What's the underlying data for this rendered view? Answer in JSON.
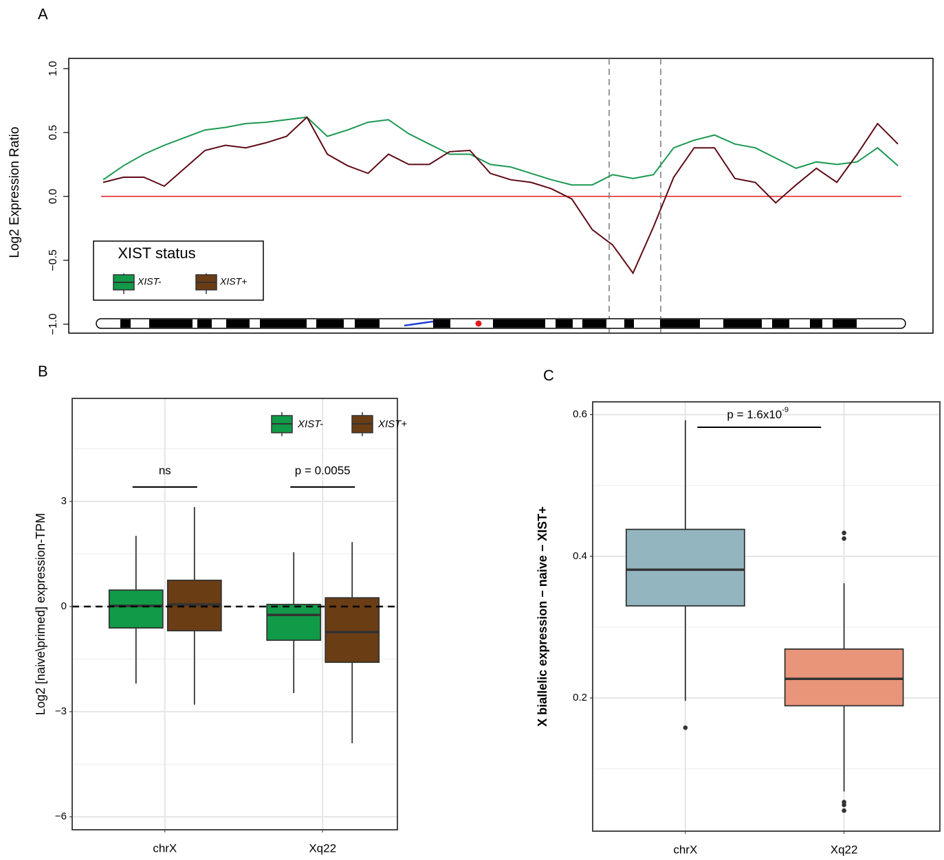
{
  "chart_data": [
    {
      "type": "line",
      "panel": "A",
      "y_label": "Log2 Expression Ratio",
      "ylim": [
        -1.07,
        1.08
      ],
      "yticks": [
        {
          "value": -1,
          "label": "−1.0"
        },
        {
          "value": -0.5,
          "label": "−0.5"
        },
        {
          "value": 0,
          "label": "0.0"
        },
        0.5,
        {
          "value": 1,
          "label": "1.0"
        }
      ],
      "hline": 0,
      "hline_color": "#e31a1c",
      "legend_title": "XIST status",
      "series": [
        {
          "name": "XIST-",
          "color": "#1a9850",
          "legend_color": "#119a48",
          "values": [
            0.13,
            0.24,
            0.33,
            0.4,
            0.46,
            0.52,
            0.54,
            0.57,
            0.58,
            0.6,
            0.62,
            0.47,
            0.52,
            0.58,
            0.6,
            0.49,
            0.41,
            0.33,
            0.33,
            0.25,
            0.23,
            0.18,
            0.13,
            0.09,
            0.09,
            0.17,
            0.14,
            0.17,
            0.38,
            0.44,
            0.48,
            0.41,
            0.38,
            0.3,
            0.22,
            0.27,
            0.25,
            0.27,
            0.38,
            0.24
          ]
        },
        {
          "name": "XIST+",
          "color": "#5e0a14",
          "legend_color": "#6b3d14",
          "values": [
            0.11,
            0.15,
            0.15,
            0.08,
            0.22,
            0.36,
            0.4,
            0.38,
            0.42,
            0.47,
            0.62,
            0.33,
            0.24,
            0.18,
            0.33,
            0.25,
            0.25,
            0.35,
            0.36,
            0.18,
            0.13,
            0.11,
            0.06,
            -0.02,
            -0.26,
            -0.38,
            -0.6,
            -0.24,
            0.15,
            0.38,
            0.38,
            0.14,
            0.11,
            -0.05,
            0.09,
            0.22,
            0.11,
            0.33,
            0.57,
            0.41
          ]
        }
      ]
    },
    {
      "type": "box",
      "panel": "B",
      "y_label": "Log2 [naive\\primed] expression-TPM",
      "categories": [
        "chrX",
        "Xq22"
      ],
      "ylim": [
        -6.37,
        5.94
      ],
      "yticks": [
        {
          "value": -6,
          "label": "−6"
        },
        {
          "value": -3,
          "label": "−3"
        },
        0,
        3
      ],
      "grid": true,
      "hline": 0,
      "annotations": [
        "ns",
        "p = 0.0055"
      ],
      "series": [
        {
          "name": "XIST-",
          "color": "#119a48",
          "boxes": [
            {
              "min": -2.2,
              "q1": -0.61,
              "median": 0.02,
              "q3": 0.47,
              "max": 2.02
            },
            {
              "min": -2.47,
              "q1": -0.96,
              "median": -0.24,
              "q3": 0.06,
              "max": 1.55
            }
          ]
        },
        {
          "name": "XIST+",
          "color": "#6b3d14",
          "boxes": [
            {
              "min": -2.8,
              "q1": -0.69,
              "median": 0.06,
              "q3": 0.75,
              "max": 2.84
            },
            {
              "min": -3.9,
              "q1": -1.59,
              "median": -0.73,
              "q3": 0.25,
              "max": 1.84
            }
          ]
        }
      ]
    },
    {
      "type": "box",
      "panel": "C",
      "y_label": "X biallelic expression − naive − XIST+",
      "categories": [
        "chrX",
        "Xq22"
      ],
      "ylim": [
        0.012,
        0.618
      ],
      "yticks": [
        0.2,
        0.4,
        0.6
      ],
      "grid": true,
      "annotation": {
        "text": "p = 1.6x10",
        "superscript": "-9"
      },
      "colors": [
        "#93b5bf",
        "#e8957a"
      ],
      "boxes": [
        {
          "min": 0.196,
          "q1": 0.33,
          "median": 0.381,
          "q3": 0.438,
          "max": 0.592,
          "outliers": [
            0.158
          ]
        },
        {
          "min": 0.068,
          "q1": 0.189,
          "median": 0.227,
          "q3": 0.269,
          "max": 0.362,
          "outliers": [
            0.433,
            0.425,
            0.053,
            0.049,
            0.041
          ]
        }
      ]
    }
  ]
}
